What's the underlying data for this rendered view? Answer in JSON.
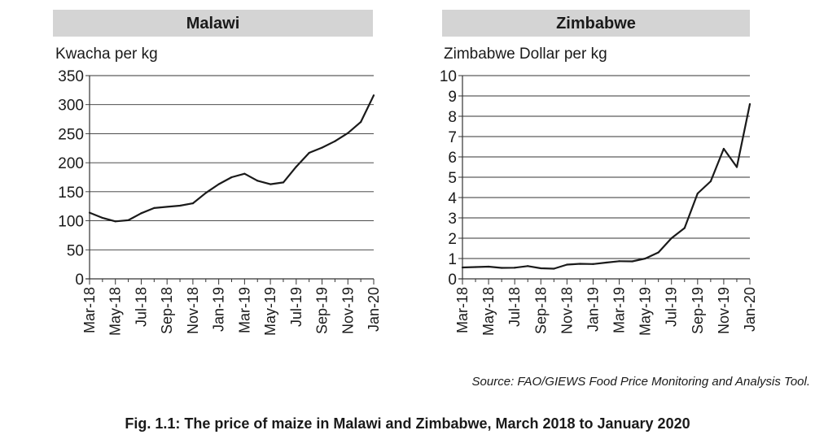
{
  "chart_data": [
    {
      "type": "line",
      "title": "Malawi",
      "ylabel": "Kwacha per kg",
      "ylim": [
        0,
        350
      ],
      "yticks": [
        "0",
        "50",
        "100",
        "150",
        "200",
        "250",
        "300",
        "350"
      ],
      "x_tick_labels": [
        "Mar-18",
        "May-18",
        "Jul-18",
        "Sep-18",
        "Nov-18",
        "Jan-19",
        "Mar-19",
        "May-19",
        "Jul-19",
        "Sep-19",
        "Nov-19",
        "Jan-20"
      ],
      "x": [
        "Mar-18",
        "Apr-18",
        "May-18",
        "Jun-18",
        "Jul-18",
        "Aug-18",
        "Sep-18",
        "Oct-18",
        "Nov-18",
        "Dec-18",
        "Jan-19",
        "Feb-19",
        "Mar-19",
        "Apr-19",
        "May-19",
        "Jun-19",
        "Jul-19",
        "Aug-19",
        "Sep-19",
        "Oct-19",
        "Nov-19",
        "Dec-19",
        "Jan-20"
      ],
      "values": [
        114,
        105,
        99,
        101,
        113,
        122,
        124,
        126,
        130,
        148,
        163,
        175,
        181,
        169,
        163,
        166,
        193,
        217,
        226,
        237,
        251,
        270,
        316
      ],
      "grid": "horizontal"
    },
    {
      "type": "line",
      "title": "Zimbabwe",
      "ylabel": "Zimbabwe Dollar per kg",
      "ylim": [
        0,
        10
      ],
      "yticks": [
        "0",
        "1",
        "2",
        "3",
        "4",
        "5",
        "6",
        "7",
        "8",
        "9",
        "10"
      ],
      "x_tick_labels": [
        "Mar-18",
        "May-18",
        "Jul-18",
        "Sep-18",
        "Nov-18",
        "Jan-19",
        "Mar-19",
        "May-19",
        "Jul-19",
        "Sep-19",
        "Nov-19",
        "Jan-20"
      ],
      "x": [
        "Mar-18",
        "Apr-18",
        "May-18",
        "Jun-18",
        "Jul-18",
        "Aug-18",
        "Sep-18",
        "Oct-18",
        "Nov-18",
        "Dec-18",
        "Jan-19",
        "Feb-19",
        "Mar-19",
        "Apr-19",
        "May-19",
        "Jun-19",
        "Jul-19",
        "Aug-19",
        "Sep-19",
        "Oct-19",
        "Nov-19",
        "Dec-19",
        "Jan-20"
      ],
      "values": [
        0.56,
        0.58,
        0.6,
        0.54,
        0.55,
        0.63,
        0.52,
        0.5,
        0.7,
        0.74,
        0.73,
        0.8,
        0.87,
        0.86,
        1.0,
        1.3,
        2.0,
        2.5,
        4.2,
        4.8,
        6.4,
        5.5,
        8.6
      ],
      "grid": "horizontal"
    }
  ],
  "source": "Source: FAO/GIEWS Food Price Monitoring and Analysis Tool.",
  "caption": "Fig. 1.1: The price of maize in Malawi and Zimbabwe, March 2018 to January 2020"
}
